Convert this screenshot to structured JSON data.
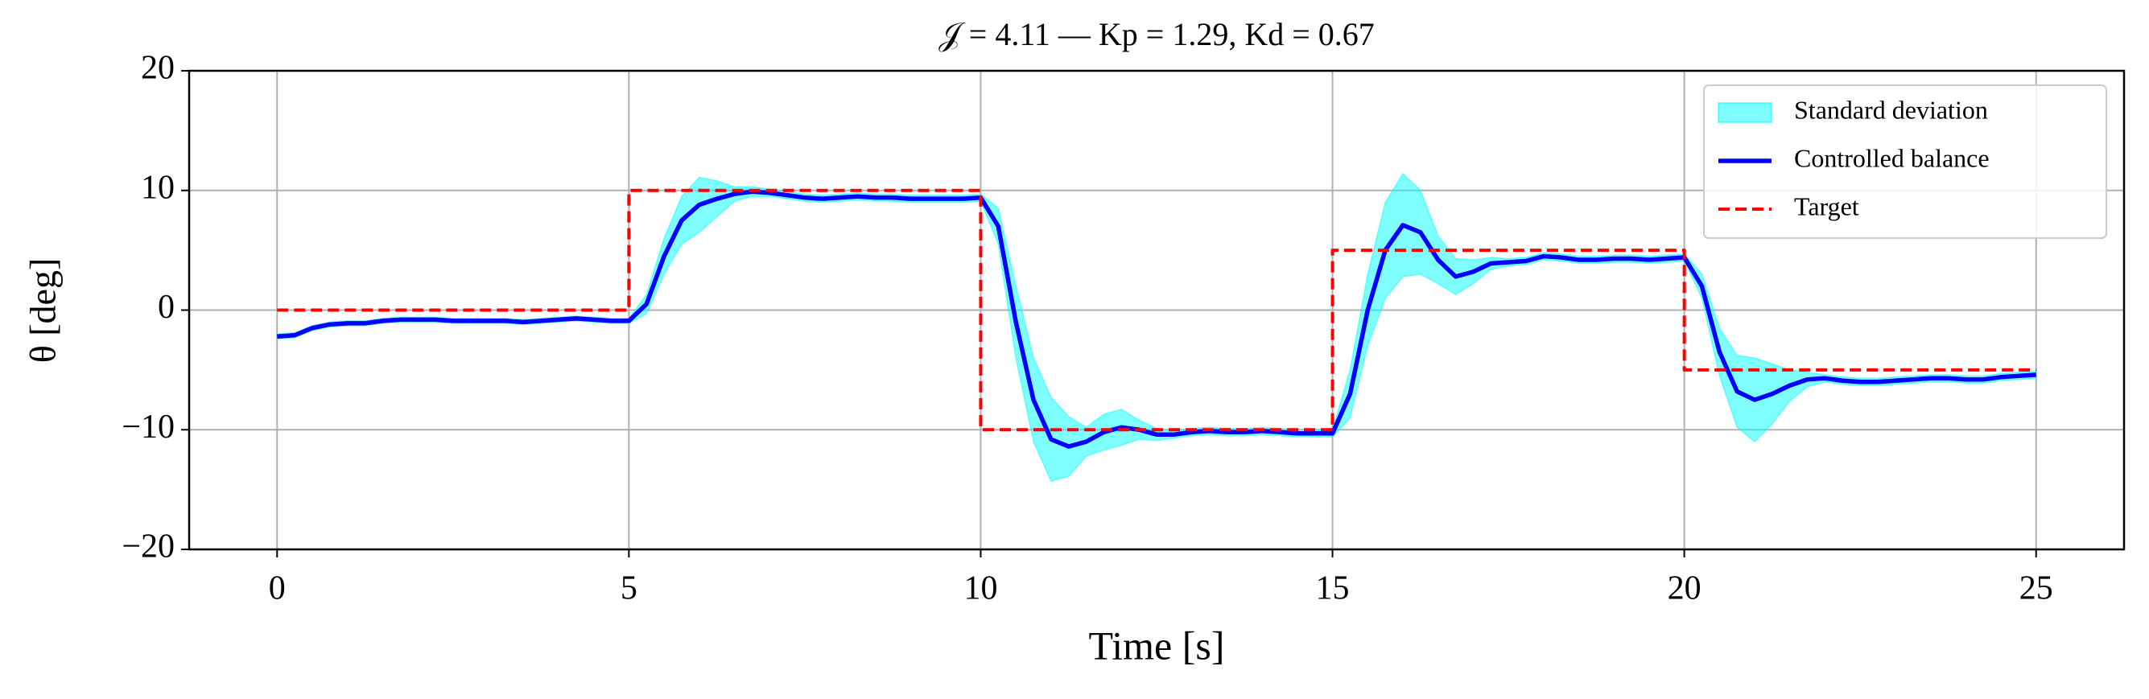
{
  "chart_data": {
    "type": "line",
    "title": "𝒥 = 4.11 — Kp = 1.29, Kd = 0.67",
    "x_label": "Time [s]",
    "y_label": "θ [deg]",
    "xlim": [
      -1.25,
      26.25
    ],
    "ylim": [
      -20,
      20
    ],
    "xticks": [
      0,
      5,
      10,
      15,
      20,
      25
    ],
    "yticks": [
      {
        "value": -20,
        "label": "−20"
      },
      {
        "value": -10,
        "label": "−10"
      },
      0,
      10,
      20
    ],
    "grid": true,
    "legend": "upper right",
    "x": [
      0,
      0.25,
      0.5,
      0.75,
      1,
      1.25,
      1.5,
      1.75,
      2,
      2.25,
      2.5,
      2.75,
      3,
      3.25,
      3.5,
      3.75,
      4,
      4.25,
      4.5,
      4.75,
      5,
      5.25,
      5.5,
      5.75,
      6,
      6.25,
      6.5,
      6.75,
      7,
      7.25,
      7.5,
      7.75,
      8,
      8.25,
      8.5,
      8.75,
      9,
      9.25,
      9.5,
      9.75,
      10,
      10.25,
      10.5,
      10.75,
      11,
      11.25,
      11.5,
      11.75,
      12,
      12.25,
      12.5,
      12.75,
      13,
      13.25,
      13.5,
      13.75,
      14,
      14.25,
      14.5,
      14.75,
      15,
      15.25,
      15.5,
      15.75,
      16,
      16.25,
      16.5,
      16.75,
      17,
      17.25,
      17.5,
      17.75,
      18,
      18.25,
      18.5,
      18.75,
      19,
      19.25,
      19.5,
      19.75,
      20,
      20.25,
      20.5,
      20.75,
      21,
      21.25,
      21.5,
      21.75,
      22,
      22.25,
      22.5,
      22.75,
      23,
      23.25,
      23.5,
      23.75,
      24,
      24.25,
      24.5,
      24.75,
      25
    ],
    "series": [
      {
        "name": "Standard deviation",
        "color": "#00ffff",
        "style": "band",
        "lower": [
          -2.4,
          -2.3,
          -1.7,
          -1.4,
          -1.3,
          -1.3,
          -1.1,
          -1.0,
          -1.0,
          -1.0,
          -1.1,
          -1.1,
          -1.1,
          -1.1,
          -1.2,
          -1.1,
          -1.0,
          -0.9,
          -1.0,
          -1.1,
          -1.1,
          -0.3,
          3.0,
          5.5,
          6.5,
          7.8,
          9.1,
          9.5,
          9.5,
          9.3,
          9.1,
          9.0,
          9.1,
          9.2,
          9.1,
          9.1,
          9.0,
          9.0,
          9.0,
          9.0,
          9.1,
          5.5,
          -4,
          -11,
          -14.3,
          -13.9,
          -12.2,
          -11.7,
          -11.3,
          -10.8,
          -10.9,
          -10.7,
          -10.5,
          -10.4,
          -10.5,
          -10.5,
          -10.4,
          -10.5,
          -10.6,
          -10.6,
          -10.6,
          -9,
          -3,
          1,
          2.8,
          3.0,
          2.2,
          1.3,
          2.2,
          3.4,
          3.7,
          3.8,
          4.2,
          4.1,
          3.9,
          3.9,
          4.0,
          4.0,
          3.9,
          4.0,
          4.1,
          1,
          -5.5,
          -9.8,
          -11,
          -9.5,
          -7.6,
          -6.4,
          -6.0,
          -6.2,
          -6.3,
          -6.3,
          -6.2,
          -6.1,
          -6.0,
          -6.0,
          -6.1,
          -6.1,
          -5.9,
          -5.8,
          -5.7
        ],
        "upper": [
          -2.0,
          -1.9,
          -1.3,
          -1.0,
          -0.9,
          -0.9,
          -0.7,
          -0.6,
          -0.6,
          -0.6,
          -0.7,
          -0.7,
          -0.7,
          -0.7,
          -0.8,
          -0.7,
          -0.6,
          -0.5,
          -0.6,
          -0.7,
          -0.7,
          1.3,
          6.0,
          9.5,
          11.1,
          10.8,
          10.3,
          10.3,
          10.1,
          9.9,
          9.7,
          9.6,
          9.7,
          9.8,
          9.7,
          9.7,
          9.6,
          9.6,
          9.6,
          9.6,
          9.7,
          8.5,
          2,
          -4,
          -7.3,
          -8.9,
          -9.8,
          -8.7,
          -8.3,
          -9.2,
          -9.9,
          -10.1,
          -9.9,
          -9.8,
          -9.9,
          -9.9,
          -9.8,
          -9.9,
          -10.0,
          -10.0,
          -10.0,
          -5,
          3,
          9,
          11.4,
          10.0,
          6.2,
          4.3,
          4.2,
          4.4,
          4.3,
          4.4,
          4.8,
          4.7,
          4.5,
          4.5,
          4.6,
          4.6,
          4.5,
          4.6,
          4.7,
          3,
          -1.5,
          -3.8,
          -4,
          -4.5,
          -5.0,
          -5.2,
          -5.4,
          -5.6,
          -5.7,
          -5.7,
          -5.6,
          -5.5,
          -5.4,
          -5.4,
          -5.5,
          -5.5,
          -5.3,
          -5.2,
          -5.1
        ]
      },
      {
        "name": "Controlled balance",
        "color": "#0000ff",
        "style": "solid",
        "values": [
          -2.2,
          -2.1,
          -1.5,
          -1.2,
          -1.1,
          -1.1,
          -0.9,
          -0.8,
          -0.8,
          -0.8,
          -0.9,
          -0.9,
          -0.9,
          -0.9,
          -1.0,
          -0.9,
          -0.8,
          -0.7,
          -0.8,
          -0.9,
          -0.9,
          0.5,
          4.5,
          7.5,
          8.8,
          9.3,
          9.7,
          9.9,
          9.8,
          9.6,
          9.4,
          9.3,
          9.4,
          9.5,
          9.4,
          9.4,
          9.3,
          9.3,
          9.3,
          9.3,
          9.4,
          7,
          -1,
          -7.5,
          -10.8,
          -11.4,
          -11,
          -10.2,
          -9.8,
          -10.0,
          -10.4,
          -10.4,
          -10.2,
          -10.1,
          -10.2,
          -10.2,
          -10.1,
          -10.2,
          -10.3,
          -10.3,
          -10.3,
          -7,
          0,
          5,
          7.1,
          6.5,
          4.2,
          2.8,
          3.2,
          3.9,
          4.0,
          4.1,
          4.5,
          4.4,
          4.2,
          4.2,
          4.3,
          4.3,
          4.2,
          4.3,
          4.4,
          2,
          -3.5,
          -6.8,
          -7.5,
          -7,
          -6.3,
          -5.8,
          -5.7,
          -5.9,
          -6.0,
          -6.0,
          -5.9,
          -5.8,
          -5.7,
          -5.7,
          -5.8,
          -5.8,
          -5.6,
          -5.5,
          -5.4
        ]
      },
      {
        "name": "Target",
        "color": "#ff0000",
        "style": "dashed",
        "x": [
          0,
          5,
          5,
          10,
          10,
          15,
          15,
          20,
          20,
          25
        ],
        "values": [
          0,
          0,
          10,
          10,
          -10,
          -10,
          5,
          5,
          -5,
          -5
        ]
      }
    ]
  }
}
